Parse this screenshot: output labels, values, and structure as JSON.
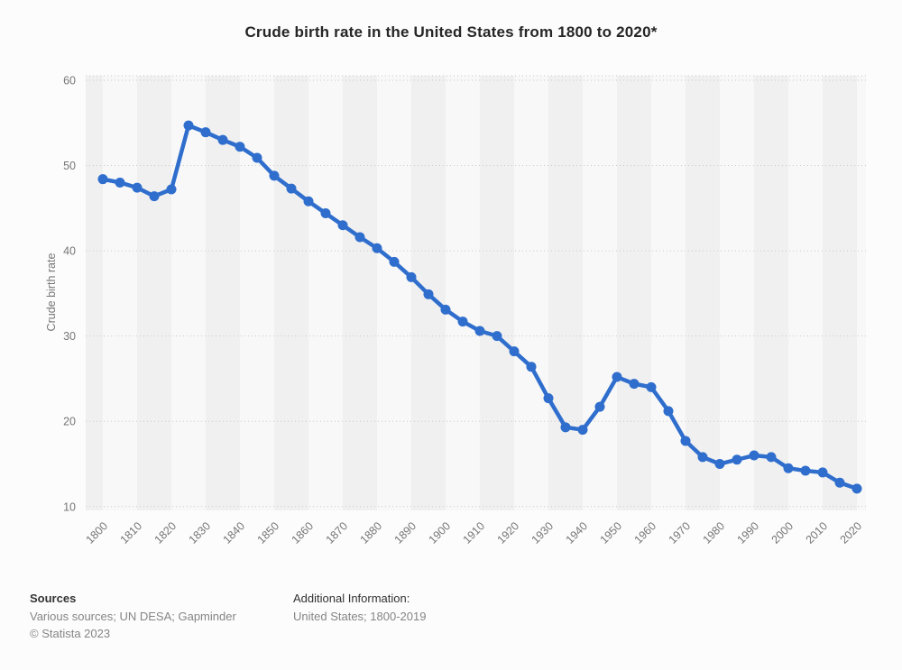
{
  "chart_data": {
    "type": "line",
    "title": "Crude birth rate in the United States from 1800 to 2020*",
    "ylabel": "Crude birth rate",
    "xlabel": "",
    "series_name": "Crude birth rate",
    "x": [
      1800,
      1805,
      1810,
      1815,
      1820,
      1825,
      1830,
      1835,
      1840,
      1845,
      1850,
      1855,
      1860,
      1865,
      1870,
      1875,
      1880,
      1885,
      1890,
      1895,
      1900,
      1905,
      1910,
      1915,
      1920,
      1925,
      1930,
      1935,
      1940,
      1945,
      1950,
      1955,
      1960,
      1965,
      1970,
      1975,
      1980,
      1985,
      1990,
      1995,
      2000,
      2005,
      2010,
      2015,
      2020
    ],
    "values": [
      48.4,
      48.0,
      47.4,
      46.4,
      47.2,
      54.7,
      53.9,
      53.0,
      52.2,
      50.9,
      48.8,
      47.3,
      45.8,
      44.4,
      43.0,
      41.6,
      40.3,
      38.7,
      36.9,
      34.9,
      33.1,
      31.7,
      30.6,
      30.0,
      28.2,
      26.4,
      22.7,
      19.3,
      19.0,
      21.7,
      25.2,
      24.4,
      24.0,
      21.2,
      17.7,
      15.8,
      15.0,
      15.5,
      16.0,
      15.8,
      14.5,
      14.2,
      14.0,
      12.8,
      12.1
    ],
    "xticks": [
      1800,
      1810,
      1820,
      1830,
      1840,
      1850,
      1860,
      1870,
      1880,
      1890,
      1900,
      1910,
      1920,
      1930,
      1940,
      1950,
      1960,
      1970,
      1980,
      1990,
      2000,
      2010,
      2020
    ],
    "yticks": [
      10,
      20,
      30,
      40,
      50,
      60
    ],
    "ylim": [
      10,
      60
    ],
    "grid": "horizontal-dotted",
    "legend": "none",
    "colors": {
      "line": "#2f6ecd",
      "band_light": "#f8f8f8",
      "band_dark": "#f0f0f0",
      "gridline": "#c9c9c9",
      "axis_text": "#767676"
    }
  },
  "footer": {
    "sources_label": "Sources",
    "sources_text": "Various sources; UN DESA; Gapminder",
    "copyright": "© Statista 2023",
    "additional_info_label": "Additional Information:",
    "additional_info_text": "United States; 1800-2019"
  }
}
